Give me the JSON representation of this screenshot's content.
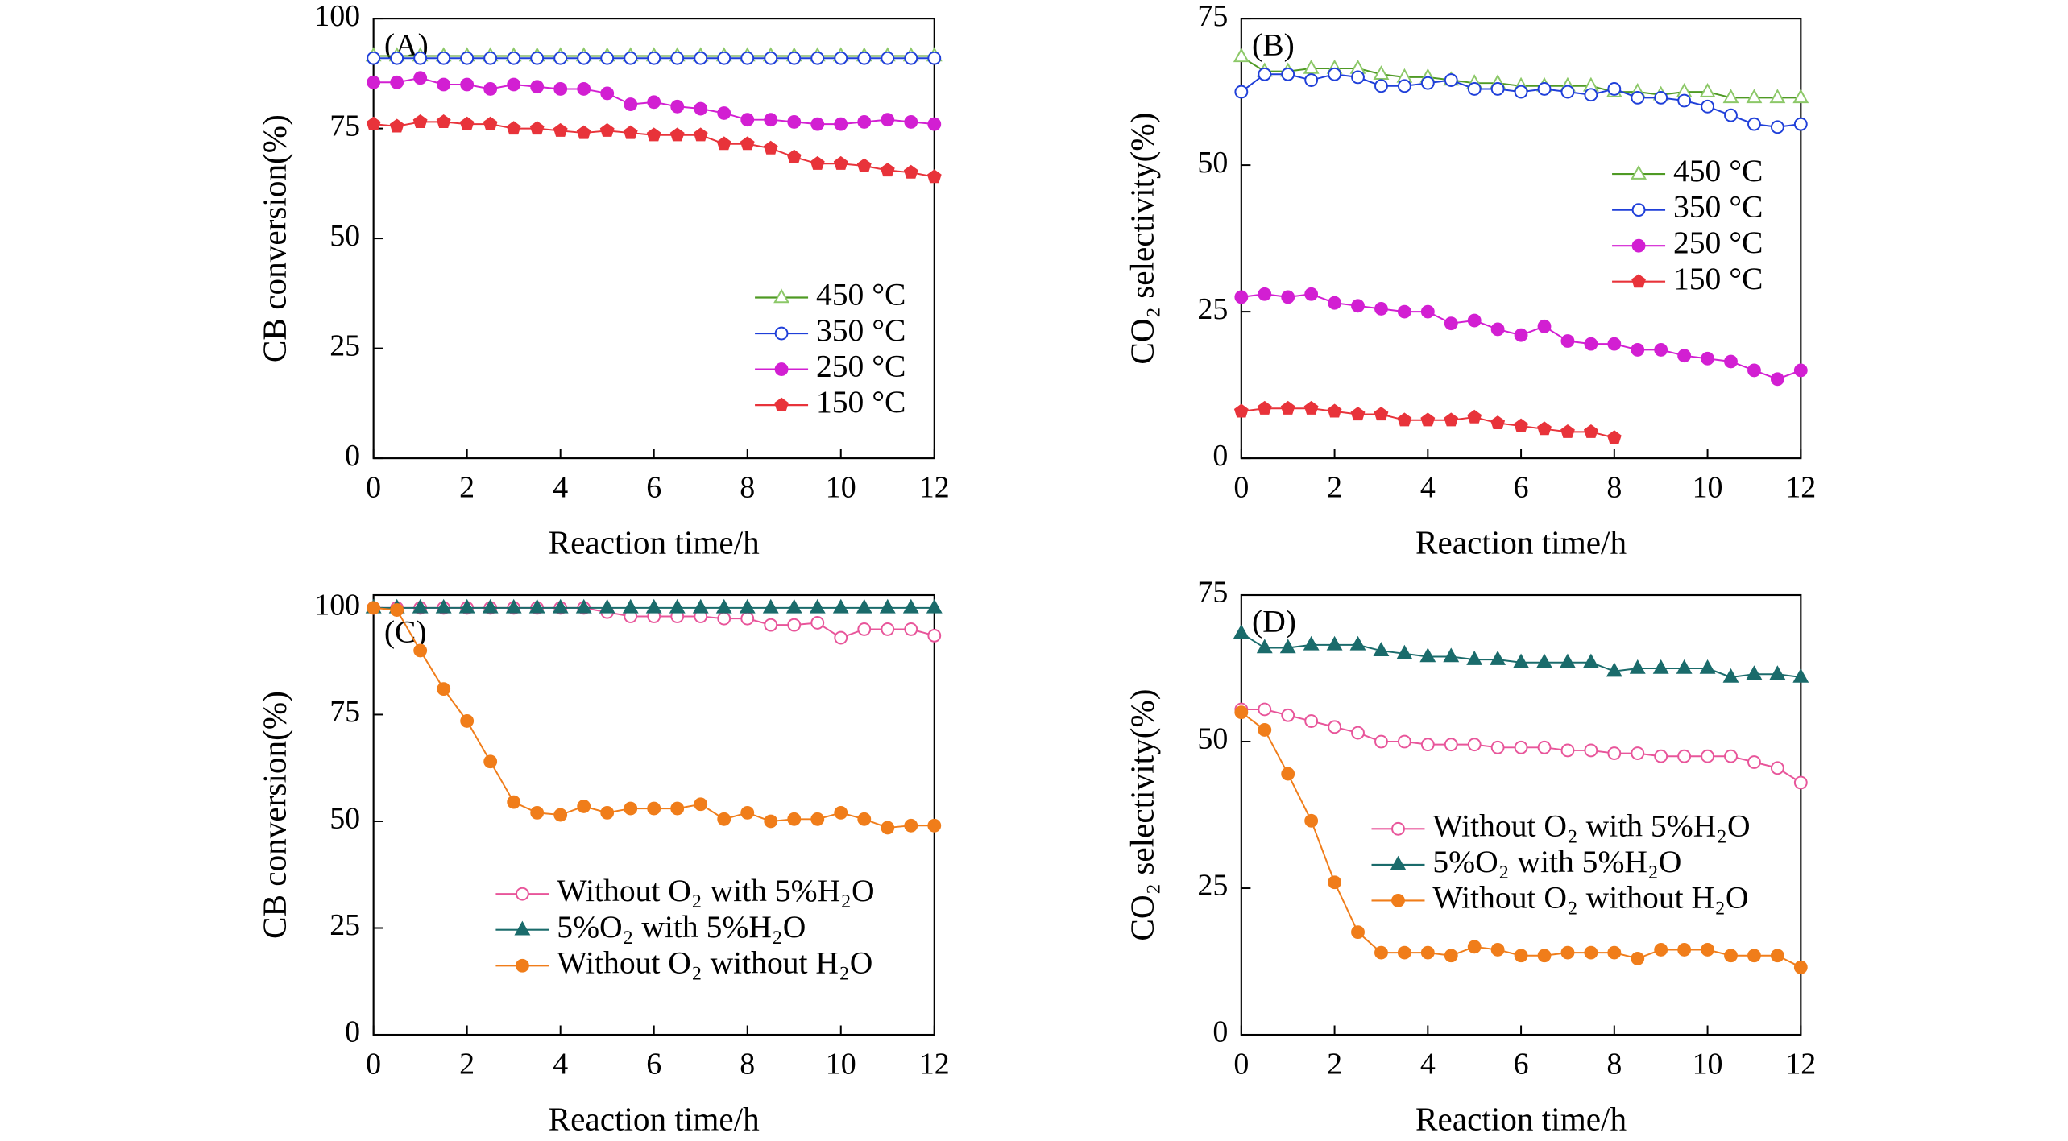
{
  "chart_data": [
    {
      "type": "line",
      "annotation": "(A)",
      "x_label": "Reaction time/h",
      "y_label": "CB conversion(%)",
      "x": [
        0,
        0.5,
        1,
        1.5,
        2,
        2.5,
        3,
        3.5,
        4,
        4.5,
        5,
        5.5,
        6,
        6.5,
        7,
        7.5,
        8,
        8.5,
        9,
        9.5,
        10,
        10.5,
        11,
        11.5,
        12
      ],
      "xlim": [
        0,
        12
      ],
      "xticks": [
        0,
        2,
        4,
        6,
        8,
        10,
        12
      ],
      "ylim": [
        0,
        100
      ],
      "yticks": [
        0,
        25,
        50,
        75,
        100
      ],
      "legend": "lower right",
      "series": [
        {
          "name": "450 °C",
          "color": "#4f9a24",
          "marker_color": "#8cc868",
          "marker": "triangle-open",
          "values": [
            91.5,
            91.5,
            91.5,
            91.5,
            91.5,
            91.5,
            91.5,
            91.5,
            91.5,
            91.5,
            91.5,
            91.5,
            91.5,
            91.5,
            91.5,
            91.5,
            91.5,
            91.5,
            91.5,
            91.5,
            91.5,
            91.5,
            91.5,
            91.5,
            91.5
          ]
        },
        {
          "name": "350 °C",
          "color": "#1f3fd9",
          "marker_color": "#1f3fd9",
          "marker": "circle-open",
          "values": [
            91,
            91,
            91,
            91,
            91,
            91,
            91,
            91,
            91,
            91,
            91,
            91,
            91,
            91,
            91,
            91,
            91,
            91,
            91,
            91,
            91,
            91,
            91,
            91,
            91
          ]
        },
        {
          "name": "250 °C",
          "color": "#d21fd2",
          "marker_color": "#d21fd2",
          "marker": "circle",
          "values": [
            85.5,
            85.5,
            86.5,
            85,
            85,
            84,
            85,
            84.5,
            84,
            84,
            83,
            80.5,
            81,
            80,
            79.5,
            78.5,
            77,
            77,
            76.5,
            76,
            76,
            76.5,
            77,
            76.5,
            76
          ]
        },
        {
          "name": "150 °C",
          "color": "#e8333a",
          "marker_color": "#e8333a",
          "marker": "pentagon",
          "values": [
            76,
            75.5,
            76.5,
            76.5,
            76,
            76,
            75,
            75,
            74.5,
            74,
            74.5,
            74,
            73.5,
            73.5,
            73.5,
            71.5,
            71.5,
            70.5,
            68.5,
            67,
            67,
            66.5,
            65.5,
            65,
            64
          ]
        }
      ]
    },
    {
      "type": "line",
      "annotation": "(B)",
      "x_label": "Reaction time/h",
      "y_label": "CO₂ selectivity(%)",
      "x": [
        0,
        0.5,
        1,
        1.5,
        2,
        2.5,
        3,
        3.5,
        4,
        4.5,
        5,
        5.5,
        6,
        6.5,
        7,
        7.5,
        8,
        8.5,
        9,
        9.5,
        10,
        10.5,
        11,
        11.5,
        12
      ],
      "xlim": [
        0,
        12
      ],
      "xticks": [
        0,
        2,
        4,
        6,
        8,
        10,
        12
      ],
      "ylim": [
        0,
        75
      ],
      "yticks": [
        0,
        25,
        50,
        75
      ],
      "legend": "center right",
      "series": [
        {
          "name": "450 °C",
          "color": "#4f9a24",
          "marker_color": "#8cc868",
          "marker": "triangle-open",
          "values": [
            68.5,
            66,
            66,
            66.5,
            66.5,
            66.5,
            65.5,
            65,
            65,
            64.5,
            64,
            64,
            63.5,
            63.5,
            63.5,
            63.5,
            62.5,
            62.5,
            62,
            62.5,
            62.5,
            61.5,
            61.5,
            61.5,
            61.5
          ]
        },
        {
          "name": "350 °C",
          "color": "#1f3fd9",
          "marker_color": "#1f3fd9",
          "marker": "circle-open",
          "values": [
            62.5,
            65.5,
            65.5,
            64.5,
            65.5,
            65,
            63.5,
            63.5,
            64,
            64.5,
            63,
            63,
            62.5,
            63,
            62.5,
            62,
            63,
            61.5,
            61.5,
            61,
            60,
            58.5,
            57,
            56.5,
            57
          ]
        },
        {
          "name": "250 °C",
          "color": "#d21fd2",
          "marker_color": "#d21fd2",
          "marker": "circle",
          "values": [
            27.5,
            28,
            27.5,
            28,
            26.5,
            26,
            25.5,
            25,
            25,
            23,
            23.5,
            22,
            21,
            22.5,
            20,
            19.5,
            19.5,
            18.5,
            18.5,
            17.5,
            17,
            16.5,
            15,
            13.5,
            15
          ]
        },
        {
          "name": "150 °C",
          "color": "#e8333a",
          "marker_color": "#e8333a",
          "marker": "pentagon",
          "values": [
            8,
            8.5,
            8.5,
            8.5,
            8,
            7.5,
            7.5,
            6.5,
            6.5,
            6.5,
            7,
            6,
            5.5,
            5,
            4.5,
            4.5,
            3.5,
            null,
            null,
            null,
            null,
            null,
            null,
            null,
            null
          ]
        }
      ]
    },
    {
      "type": "line",
      "annotation": "(C)",
      "x_label": "Reaction time/h",
      "y_label": "CB conversion(%)",
      "x": [
        0,
        0.5,
        1,
        1.5,
        2,
        2.5,
        3,
        3.5,
        4,
        4.5,
        5,
        5.5,
        6,
        6.5,
        7,
        7.5,
        8,
        8.5,
        9,
        9.5,
        10,
        10.5,
        11,
        11.5,
        12
      ],
      "xlim": [
        0,
        12
      ],
      "xticks": [
        0,
        2,
        4,
        6,
        8,
        10,
        12
      ],
      "ylim": [
        0,
        103
      ],
      "yticks": [
        0,
        25,
        50,
        75,
        100
      ],
      "legend": "lower center",
      "series": [
        {
          "name": "Without O₂ with 5%H₂O",
          "color": "#e8559a",
          "marker_color": "#e8559a",
          "marker": "circle-open",
          "values": [
            100,
            100,
            100,
            100,
            100,
            100,
            100,
            100,
            100,
            100,
            99,
            98,
            98,
            98,
            98,
            97.5,
            97.5,
            96,
            96,
            96.5,
            93,
            95,
            95,
            95,
            93.5
          ]
        },
        {
          "name": "5%O₂ with 5%H₂O",
          "color": "#1a6b6b",
          "marker_color": "#1a6b6b",
          "marker": "triangle",
          "values": [
            100,
            100,
            100,
            100,
            100,
            100,
            100,
            100,
            100,
            100,
            100,
            100,
            100,
            100,
            100,
            100,
            100,
            100,
            100,
            100,
            100,
            100,
            100,
            100,
            100
          ]
        },
        {
          "name": "Without O₂ without H₂O",
          "color": "#f07d1a",
          "marker_color": "#f07d1a",
          "marker": "circle",
          "values": [
            100,
            99.5,
            90,
            81,
            73.5,
            64,
            54.5,
            52,
            51.5,
            53.5,
            52,
            53,
            53,
            53,
            54,
            50.5,
            52,
            50,
            50.5,
            50.5,
            52,
            50.5,
            48.5,
            49,
            49
          ]
        }
      ]
    },
    {
      "type": "line",
      "annotation": "(D)",
      "x_label": "Reaction time/h",
      "y_label": "CO₂ selectivity(%)",
      "x": [
        0,
        0.5,
        1,
        1.5,
        2,
        2.5,
        3,
        3.5,
        4,
        4.5,
        5,
        5.5,
        6,
        6.5,
        7,
        7.5,
        8,
        8.5,
        9,
        9.5,
        10,
        10.5,
        11,
        11.5,
        12
      ],
      "xlim": [
        0,
        12
      ],
      "xticks": [
        0,
        2,
        4,
        6,
        8,
        10,
        12
      ],
      "ylim": [
        0,
        75
      ],
      "yticks": [
        0,
        25,
        50,
        75
      ],
      "legend": "center",
      "series": [
        {
          "name": "Without O₂ with 5%H₂O",
          "color": "#e8559a",
          "marker_color": "#e8559a",
          "marker": "circle-open",
          "values": [
            55.5,
            55.5,
            54.5,
            53.5,
            52.5,
            51.5,
            50,
            50,
            49.5,
            49.5,
            49.5,
            49,
            49,
            49,
            48.5,
            48.5,
            48,
            48,
            47.5,
            47.5,
            47.5,
            47.5,
            46.5,
            45.5,
            43
          ]
        },
        {
          "name": "5%O₂ with 5%H₂O",
          "color": "#1a6b6b",
          "marker_color": "#1a6b6b",
          "marker": "triangle",
          "values": [
            68.5,
            66,
            66,
            66.5,
            66.5,
            66.5,
            65.5,
            65,
            64.5,
            64.5,
            64,
            64,
            63.5,
            63.5,
            63.5,
            63.5,
            62,
            62.5,
            62.5,
            62.5,
            62.5,
            61,
            61.5,
            61.5,
            61
          ]
        },
        {
          "name": "Without O₂ without H₂O",
          "color": "#f07d1a",
          "marker_color": "#f07d1a",
          "marker": "circle",
          "values": [
            55,
            52,
            44.5,
            36.5,
            26,
            17.5,
            14,
            14,
            14,
            13.5,
            15,
            14.5,
            13.5,
            13.5,
            14,
            14,
            14,
            13,
            14.5,
            14.5,
            14.5,
            13.5,
            13.5,
            13.5,
            11.5
          ]
        }
      ]
    }
  ]
}
